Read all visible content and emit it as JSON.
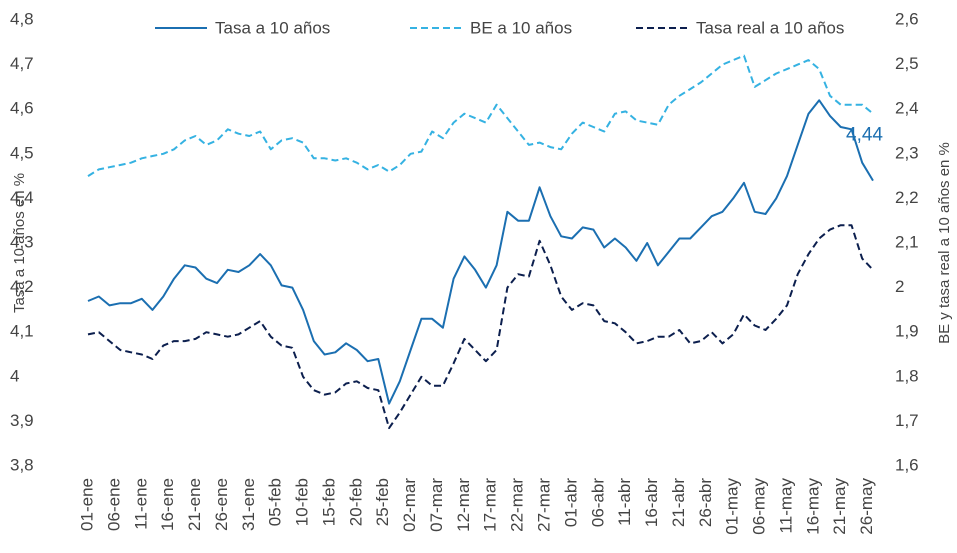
{
  "chart_data": {
    "type": "line",
    "ylabel": "Tasa a 10 años en %",
    "y2label": "BE y tasa real a 10 años en %",
    "annotations": [
      {
        "text": "4,44"
      }
    ],
    "x": [
      0,
      2,
      4,
      6,
      8,
      10,
      12,
      14,
      16,
      18,
      20,
      22,
      24,
      26,
      28,
      30,
      32,
      34,
      36,
      38,
      40,
      42,
      44,
      46,
      48,
      50,
      52,
      54,
      56,
      58,
      60,
      62,
      64,
      66,
      68,
      70,
      72,
      74,
      76,
      78,
      80,
      82,
      84,
      86,
      88,
      90,
      92,
      94,
      96,
      98,
      100,
      102,
      104,
      106,
      108,
      110,
      112,
      114,
      116,
      118,
      120,
      122,
      124,
      126,
      128,
      130,
      132,
      134,
      136,
      138,
      140,
      142,
      144,
      146
    ],
    "xlim": [
      0,
      146
    ],
    "xticks": [
      {
        "value": 0,
        "label": "01-ene"
      },
      {
        "value": 5,
        "label": "06-ene"
      },
      {
        "value": 10,
        "label": "11-ene"
      },
      {
        "value": 15,
        "label": "16-ene"
      },
      {
        "value": 20,
        "label": "21-ene"
      },
      {
        "value": 25,
        "label": "26-ene"
      },
      {
        "value": 30,
        "label": "31-ene"
      },
      {
        "value": 35,
        "label": "05-feb"
      },
      {
        "value": 40,
        "label": "10-feb"
      },
      {
        "value": 45,
        "label": "15-feb"
      },
      {
        "value": 50,
        "label": "20-feb"
      },
      {
        "value": 55,
        "label": "25-feb"
      },
      {
        "value": 60,
        "label": "02-mar"
      },
      {
        "value": 65,
        "label": "07-mar"
      },
      {
        "value": 70,
        "label": "12-mar"
      },
      {
        "value": 75,
        "label": "17-mar"
      },
      {
        "value": 80,
        "label": "22-mar"
      },
      {
        "value": 85,
        "label": "27-mar"
      },
      {
        "value": 90,
        "label": "01-abr"
      },
      {
        "value": 95,
        "label": "06-abr"
      },
      {
        "value": 100,
        "label": "11-abr"
      },
      {
        "value": 105,
        "label": "16-abr"
      },
      {
        "value": 110,
        "label": "21-abr"
      },
      {
        "value": 115,
        "label": "26-abr"
      },
      {
        "value": 120,
        "label": "01-may"
      },
      {
        "value": 125,
        "label": "06-may"
      },
      {
        "value": 130,
        "label": "11-may"
      },
      {
        "value": 135,
        "label": "16-may"
      },
      {
        "value": 140,
        "label": "21-may"
      },
      {
        "value": 145,
        "label": "26-may"
      }
    ],
    "ylim": [
      3.8,
      4.8
    ],
    "yticks": [
      {
        "value": 3.8,
        "label": "3,8"
      },
      {
        "value": 3.9,
        "label": "3,9"
      },
      4,
      {
        "value": 4.1,
        "label": "4,1"
      },
      {
        "value": 4.2,
        "label": "4,2"
      },
      {
        "value": 4.3,
        "label": "4,3"
      },
      {
        "value": 4.4,
        "label": "4,4"
      },
      {
        "value": 4.5,
        "label": "4,5"
      },
      {
        "value": 4.6,
        "label": "4,6"
      },
      {
        "value": 4.7,
        "label": "4,7"
      },
      {
        "value": 4.8,
        "label": "4,8"
      }
    ],
    "y2lim": [
      1.6,
      2.6
    ],
    "y2ticks": [
      {
        "value": 1.6,
        "label": "1,6"
      },
      {
        "value": 1.7,
        "label": "1,7"
      },
      {
        "value": 1.8,
        "label": "1,8"
      },
      {
        "value": 1.9,
        "label": "1,9"
      },
      2,
      {
        "value": 2.1,
        "label": "2,1"
      },
      {
        "value": 2.2,
        "label": "2,2"
      },
      {
        "value": 2.3,
        "label": "2,3"
      },
      {
        "value": 2.4,
        "label": "2,4"
      },
      {
        "value": 2.5,
        "label": "2,5"
      },
      {
        "value": 2.6,
        "label": "2,6"
      }
    ],
    "series": [
      {
        "name": "Tasa a 10 años",
        "color": "#1b6fb1",
        "dashed": false,
        "values": [
          4.17,
          4.18,
          4.16,
          4.165,
          4.165,
          4.175,
          4.15,
          4.18,
          4.22,
          4.25,
          4.245,
          4.22,
          4.21,
          4.24,
          4.235,
          4.25,
          4.275,
          4.25,
          4.205,
          4.2,
          4.15,
          4.08,
          4.05,
          4.055,
          4.075,
          4.06,
          4.035,
          4.04,
          3.94,
          3.99,
          4.06,
          4.13,
          4.13,
          4.11,
          4.22,
          4.27,
          4.24,
          4.2,
          4.25,
          4.37,
          4.35,
          4.35,
          4.425,
          4.36,
          4.315,
          4.31,
          4.335,
          4.33,
          4.29,
          4.31,
          4.29,
          4.26,
          4.3,
          4.25,
          4.28,
          4.31,
          4.31,
          4.335,
          4.36,
          4.37,
          4.4,
          4.435,
          4.37,
          4.365,
          4.4,
          4.45,
          4.52,
          4.59,
          4.62,
          4.585,
          4.56,
          4.555,
          4.48,
          4.44
        ]
      },
      {
        "name": "BE a 10 años",
        "color": "#35b2e2",
        "dashed": true,
        "axis": "y2",
        "values": [
          2.25,
          2.265,
          2.27,
          2.275,
          2.28,
          2.29,
          2.295,
          2.3,
          2.31,
          2.33,
          2.34,
          2.32,
          2.33,
          2.355,
          2.345,
          2.34,
          2.35,
          2.31,
          2.33,
          2.335,
          2.325,
          2.29,
          2.29,
          2.285,
          2.29,
          2.28,
          2.265,
          2.275,
          2.26,
          2.275,
          2.3,
          2.305,
          2.35,
          2.335,
          2.37,
          2.39,
          2.38,
          2.37,
          2.41,
          2.38,
          2.35,
          2.32,
          2.325,
          2.315,
          2.31,
          2.345,
          2.37,
          2.36,
          2.35,
          2.39,
          2.395,
          2.375,
          2.37,
          2.365,
          2.41,
          2.43,
          2.445,
          2.46,
          2.48,
          2.5,
          2.51,
          2.52,
          2.45,
          2.465,
          2.48,
          2.49,
          2.5,
          2.51,
          2.49,
          2.43,
          2.41,
          2.41,
          2.41,
          2.39
        ]
      },
      {
        "name": "Tasa real a 10 años",
        "color": "#0c1f4e",
        "dashed": true,
        "axis": "y2",
        "values": [
          1.895,
          1.9,
          1.88,
          1.86,
          1.855,
          1.85,
          1.84,
          1.87,
          1.88,
          1.88,
          1.885,
          1.9,
          1.895,
          1.89,
          1.895,
          1.91,
          1.925,
          1.89,
          1.87,
          1.865,
          1.8,
          1.77,
          1.76,
          1.765,
          1.785,
          1.79,
          1.775,
          1.77,
          1.685,
          1.72,
          1.76,
          1.8,
          1.78,
          1.78,
          1.83,
          1.885,
          1.86,
          1.835,
          1.86,
          2.0,
          2.03,
          2.025,
          2.105,
          2.05,
          1.98,
          1.95,
          1.965,
          1.96,
          1.925,
          1.92,
          1.9,
          1.875,
          1.88,
          1.89,
          1.89,
          1.905,
          1.875,
          1.88,
          1.9,
          1.875,
          1.895,
          1.94,
          1.915,
          1.905,
          1.93,
          1.96,
          2.03,
          2.075,
          2.11,
          2.13,
          2.14,
          2.14,
          2.065,
          2.04
        ]
      }
    ]
  }
}
